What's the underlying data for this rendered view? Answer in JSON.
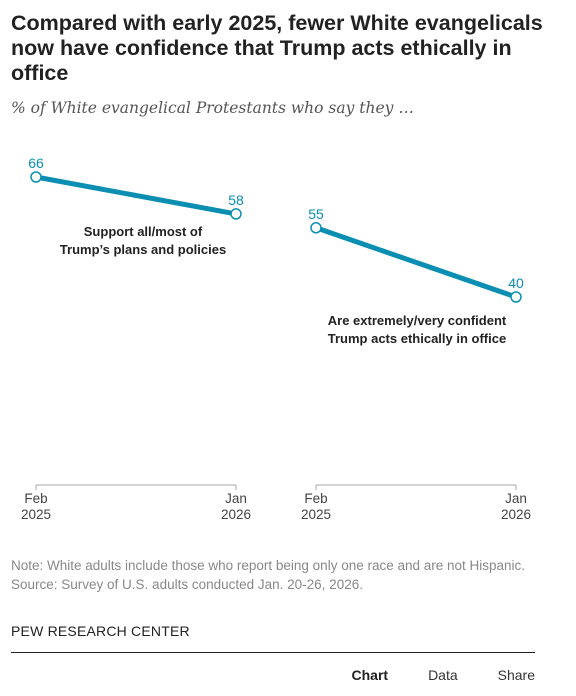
{
  "header": {
    "title": "Compared with early 2025, fewer White evangelicals now have confidence that Trump acts ethically in office",
    "subtitle": "% of White evangelical Protestants who say they …"
  },
  "chart_data": {
    "type": "line",
    "line_color": "#0a8fb3",
    "grid": false,
    "panels": [
      {
        "label_lines": [
          "Support all/most of",
          "Trump’s plans and policies"
        ],
        "x": [
          "Feb 2025",
          "Jan 2026"
        ],
        "x_tick_lines": [
          [
            "Feb",
            "2025"
          ],
          [
            "Jan",
            "2026"
          ]
        ],
        "values": [
          66,
          58
        ]
      },
      {
        "label_lines": [
          "Are extremely/very confident",
          "Trump acts ethically in office"
        ],
        "x": [
          "Feb 2025",
          "Jan 2026"
        ],
        "x_tick_lines": [
          [
            "Feb",
            "2025"
          ],
          [
            "Jan",
            "2026"
          ]
        ],
        "values": [
          55,
          40
        ]
      }
    ]
  },
  "footer": {
    "note": "Note: White adults include those who report being only one race and are not Hispanic.",
    "source": "Source: Survey of U.S. adults conducted Jan. 20-26, 2026.",
    "brand": "PEW RESEARCH CENTER",
    "tabs": [
      "Chart",
      "Data",
      "Share"
    ],
    "active_tab": "Chart"
  }
}
